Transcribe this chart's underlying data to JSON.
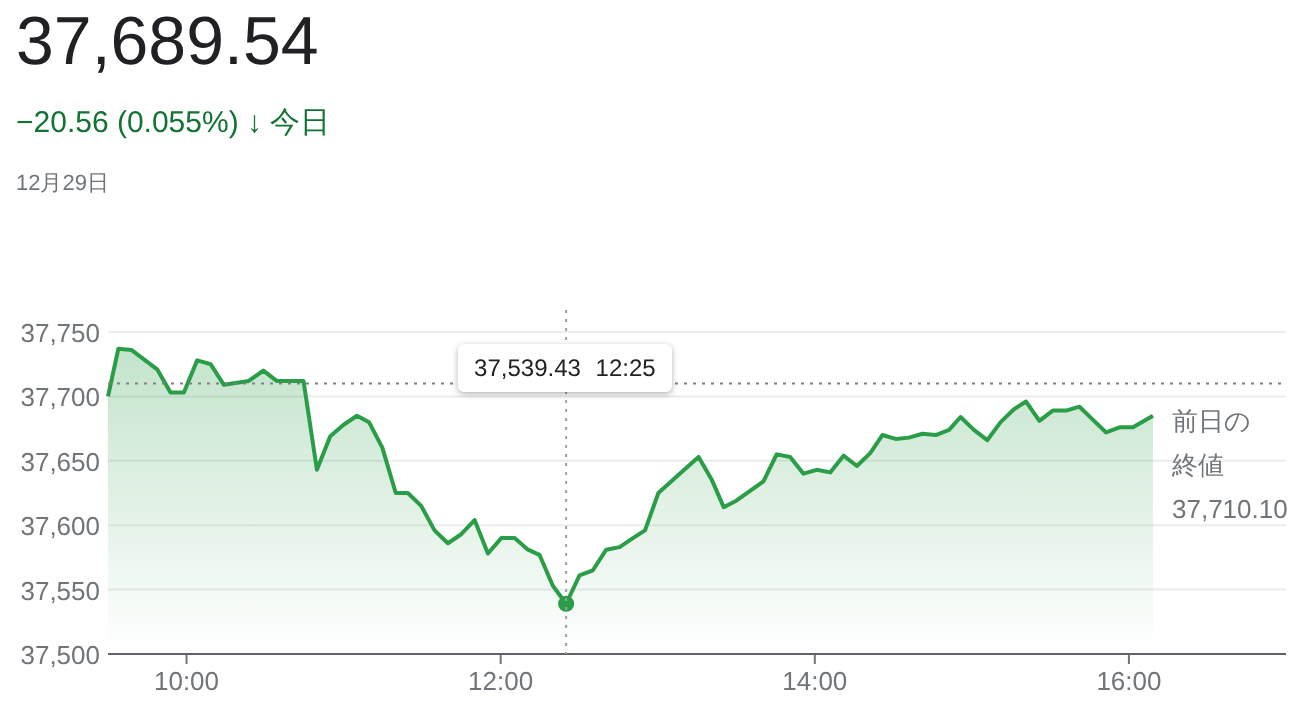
{
  "chart_data": {
    "type": "area",
    "title": "37,689.54",
    "subtitle": "−20.56 (0.055%) ↓ 今日",
    "annotations": [
      "12月29日",
      "37,539.43 12:25"
    ],
    "x": [
      9.5,
      9.566,
      9.651,
      9.813,
      9.898,
      9.983,
      10.068,
      10.153,
      10.238,
      10.396,
      10.489,
      10.574,
      10.745,
      10.83,
      10.915,
      11.0,
      11.085,
      11.162,
      11.247,
      11.332,
      11.409,
      11.494,
      11.579,
      11.664,
      11.749,
      11.834,
      11.919,
      12.004,
      12.089,
      12.174,
      12.247,
      12.332,
      12.4167,
      12.502,
      12.587,
      12.672,
      12.757,
      12.842,
      12.919,
      13.004,
      13.14,
      13.26,
      13.345,
      13.42,
      13.5,
      13.673,
      13.757,
      13.843,
      13.928,
      14.013,
      14.098,
      14.183,
      14.268,
      14.353,
      14.43,
      14.515,
      14.6,
      14.685,
      14.77,
      14.855,
      14.928,
      15.013,
      15.098,
      15.183,
      15.268,
      15.345,
      15.43,
      15.515,
      15.6,
      15.685,
      15.77,
      15.855,
      15.94,
      16.026,
      16.153
    ],
    "series": [
      {
        "color": "#2a9d47",
        "values": [
          37700,
          37737,
          37736,
          37721,
          37703,
          37703,
          37728,
          37725,
          37709,
          37712,
          37720,
          37712,
          37712,
          37643,
          37669,
          37678,
          37685,
          37680,
          37660,
          37625,
          37625,
          37615,
          37596,
          37586,
          37593,
          37604,
          37578,
          37590,
          37590,
          37581,
          37577,
          37553,
          37539,
          37561,
          37565,
          37581,
          37583,
          37590,
          37596,
          37625,
          37640,
          37653,
          37635,
          37614,
          37619,
          37634,
          37655,
          37653,
          37640,
          37643,
          37641,
          37654,
          37646,
          37656,
          37670,
          37667,
          37668,
          37671,
          37670,
          37674,
          37684,
          37674,
          37666,
          37680,
          37690,
          37696,
          37681,
          37689,
          37689,
          37692,
          37682,
          37672,
          37676,
          37676,
          37685
        ]
      },
      {
        "type": "scatter",
        "marker": "circle",
        "color": "#2a9d47",
        "x": [
          12.4167
        ],
        "values": [
          37539
        ]
      }
    ],
    "xlim": [
      9.5,
      17
    ],
    "ylim": [
      37500,
      37750
    ],
    "xticks": [
      {
        "value": 10,
        "label": "10:00"
      },
      {
        "value": 12,
        "label": "12:00"
      },
      {
        "value": 14,
        "label": "14:00"
      },
      {
        "value": 16,
        "label": "16:00"
      }
    ],
    "yticks": [
      {
        "value": 37500,
        "label": "37,500"
      },
      {
        "value": 37550,
        "label": "37,550"
      },
      {
        "value": 37600,
        "label": "37,600"
      },
      {
        "value": 37650,
        "label": "37,650"
      },
      {
        "value": 37700,
        "label": "37,700"
      },
      {
        "value": 37750,
        "label": "37,750"
      }
    ],
    "grid": "y",
    "ref_lines": [
      {
        "axis": "y",
        "value": 37710.1,
        "label": "前日の終値 37,710.10",
        "color": "#808080",
        "line_style": "dotted"
      },
      {
        "axis": "x",
        "value": 12.4167,
        "color": "#9e9e9e",
        "line_style": "dotted"
      }
    ]
  }
}
